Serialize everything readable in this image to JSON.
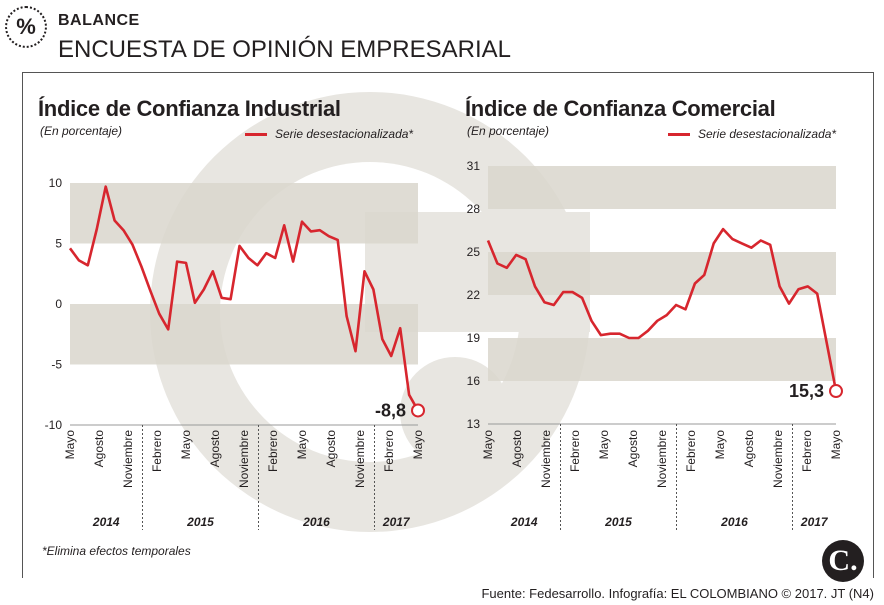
{
  "header": {
    "badge": "%",
    "kicker": "BALANCE",
    "headline": "ENCUESTA DE OPINIÓN EMPRESARIAL"
  },
  "legend_label": "Serie desestacionalizada*",
  "footnote": "*Elimina efectos temporales",
  "source": "Fuente: Fedesarrollo. Infografía: EL COLOMBIANO © 2017. JT (N4)",
  "logo_glyph": "C.",
  "colors": {
    "line": "#d7262e",
    "band": "#d9d6cc",
    "text": "#231f20"
  },
  "chart_data": [
    {
      "type": "line",
      "title": "Índice de Confianza Industrial",
      "subtitle": "(En porcentaje)",
      "series_name": "Serie desestacionalizada*",
      "ylim": [
        -10,
        10
      ],
      "yticks": [
        10,
        5,
        0,
        -5,
        -10
      ],
      "yticks_labels": [
        "10",
        "5",
        "0",
        "-5",
        "-10"
      ],
      "bands": [
        [
          5,
          10
        ],
        [
          -5,
          0
        ]
      ],
      "x_labels": [
        "Mayo",
        "Agosto",
        "Noviembre",
        "Febrero",
        "Mayo",
        "Agosto",
        "Noviembre",
        "Febrero",
        "Mayo",
        "Agosto",
        "Noviembre",
        "Febrero",
        "Mayo"
      ],
      "x_label_index": [
        0,
        3,
        6,
        9,
        12,
        15,
        18,
        21,
        24,
        27,
        30,
        33,
        36
      ],
      "years": [
        {
          "label": "2014",
          "start": 0,
          "end": 7.5
        },
        {
          "label": "2015",
          "start": 7.5,
          "end": 19.5
        },
        {
          "label": "2016",
          "start": 19.5,
          "end": 31.5
        },
        {
          "label": "2017",
          "start": 31.5,
          "end": 36
        }
      ],
      "values": [
        4.6,
        3.6,
        3.2,
        6.2,
        9.7,
        6.9,
        6.1,
        4.9,
        3.1,
        1.1,
        -0.8,
        -2.1,
        3.5,
        3.4,
        0.1,
        1.2,
        2.7,
        0.5,
        0.4,
        4.8,
        3.8,
        3.2,
        4.2,
        3.8,
        6.5,
        3.5,
        6.8,
        6.0,
        6.1,
        5.6,
        5.3,
        -1.0,
        -3.9,
        2.7,
        1.2,
        -2.9,
        -4.3,
        -2.0,
        -7.5,
        -8.8
      ],
      "last_label": "-8,8"
    },
    {
      "type": "line",
      "title": "Índice de Confianza Comercial",
      "subtitle": "(En porcentaje)",
      "series_name": "Serie desestacionalizada*",
      "ylim": [
        13,
        31
      ],
      "yticks": [
        31,
        28,
        25,
        22,
        19,
        16,
        13
      ],
      "yticks_labels": [
        "31",
        "28",
        "25",
        "22",
        "19",
        "16",
        "13"
      ],
      "bands": [
        [
          28,
          31
        ],
        [
          22,
          25
        ],
        [
          16,
          19
        ]
      ],
      "x_labels": [
        "Mayo",
        "Agosto",
        "Noviembre",
        "Febrero",
        "Mayo",
        "Agosto",
        "Noviembre",
        "Febrero",
        "Mayo",
        "Agosto",
        "Noviembre",
        "Febrero",
        "Mayo"
      ],
      "x_label_index": [
        0,
        3,
        6,
        9,
        12,
        15,
        18,
        21,
        24,
        27,
        30,
        33,
        36
      ],
      "years": [
        {
          "label": "2014",
          "start": 0,
          "end": 7.5
        },
        {
          "label": "2015",
          "start": 7.5,
          "end": 19.5
        },
        {
          "label": "2016",
          "start": 19.5,
          "end": 31.5
        },
        {
          "label": "2017",
          "start": 31.5,
          "end": 36
        }
      ],
      "values": [
        25.8,
        24.2,
        23.9,
        24.8,
        24.5,
        22.6,
        21.5,
        21.3,
        22.2,
        22.2,
        21.8,
        20.2,
        19.2,
        19.3,
        19.3,
        19.0,
        19.0,
        19.5,
        20.2,
        20.6,
        21.3,
        21.0,
        22.8,
        23.4,
        25.6,
        26.6,
        25.9,
        25.6,
        25.3,
        25.8,
        25.5,
        22.6,
        21.4,
        22.4,
        22.6,
        22.1,
        18.7,
        15.3
      ],
      "last_label": "15,3"
    }
  ]
}
